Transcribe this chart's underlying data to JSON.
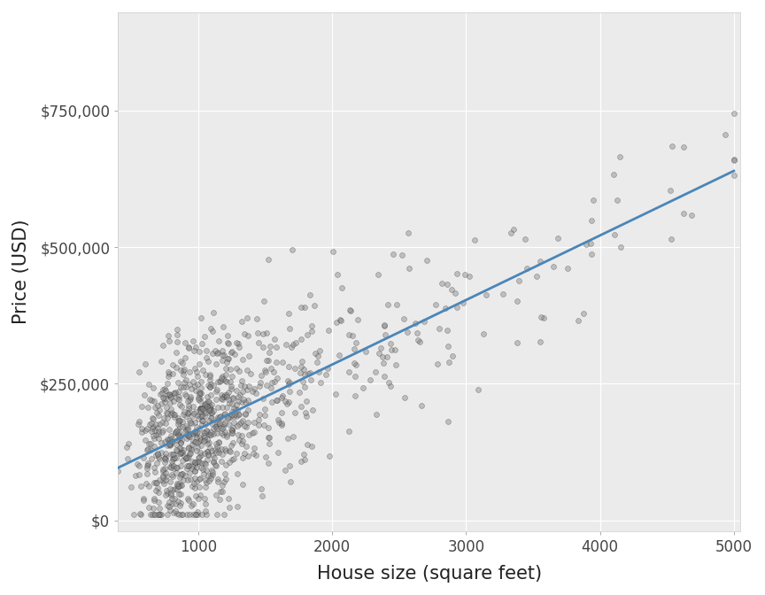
{
  "title": "",
  "xlabel": "House size (square feet)",
  "ylabel": "Price (USD)",
  "xlim": [
    400,
    5050
  ],
  "ylim": [
    -20000,
    930000
  ],
  "xticks": [
    1000,
    2000,
    3000,
    4000,
    5000
  ],
  "yticks": [
    0,
    250000,
    500000,
    750000
  ],
  "ytick_labels": [
    "$0",
    "$250,000",
    "$500,000",
    "$750,000"
  ],
  "background_color": "#EBEBEB",
  "panel_background": "#EBEBEB",
  "grid_color": "#FFFFFF",
  "dot_facecolor": "#888888",
  "dot_alpha": 0.45,
  "dot_size": 18,
  "dot_edgecolor": "#222222",
  "dot_edgewidth": 0.4,
  "line_color": "#4A86B8",
  "line_width": 2.0,
  "n_points": 985,
  "xlabel_fontsize": 15,
  "ylabel_fontsize": 15,
  "tick_fontsize": 12,
  "seed": 42,
  "fig_bg": "#FFFFFF"
}
